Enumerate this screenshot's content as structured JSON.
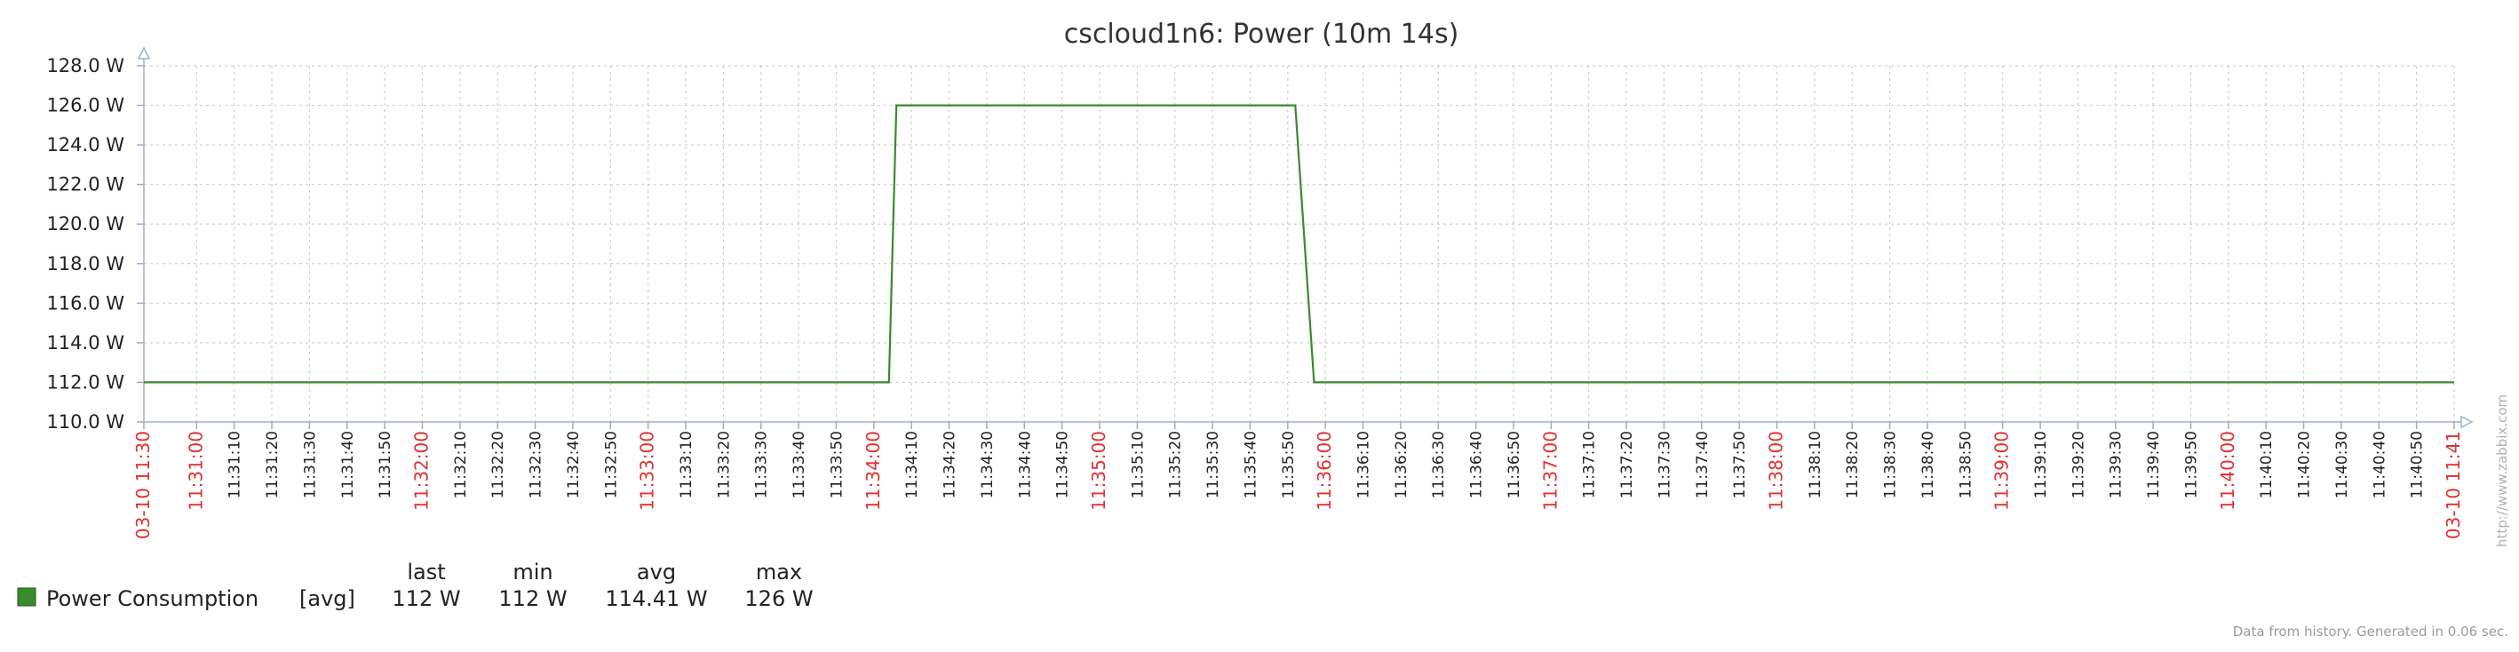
{
  "chart_data": {
    "type": "line",
    "title": "cscloud1n6: Power (10m 14s)",
    "y_unit": "W",
    "ylim": [
      110.0,
      128.0
    ],
    "y_ticks": [
      "110.0 W",
      "112.0 W",
      "114.0 W",
      "116.0 W",
      "118.0 W",
      "120.0 W",
      "122.0 W",
      "124.0 W",
      "126.0 W",
      "128.0 W"
    ],
    "x_range": [
      "11:30:46",
      "11:41:00"
    ],
    "x_tick_labels": [
      {
        "t": "11:30:46",
        "label": "03-10 11:30",
        "major": true
      },
      {
        "t": "11:31:00",
        "label": "11:31:00",
        "major": true
      },
      {
        "t": "11:31:10",
        "label": "11:31:10"
      },
      {
        "t": "11:31:20",
        "label": "11:31:20"
      },
      {
        "t": "11:31:30",
        "label": "11:31:30"
      },
      {
        "t": "11:31:40",
        "label": "11:31:40"
      },
      {
        "t": "11:31:50",
        "label": "11:31:50"
      },
      {
        "t": "11:32:00",
        "label": "11:32:00",
        "major": true
      },
      {
        "t": "11:32:10",
        "label": "11:32:10"
      },
      {
        "t": "11:32:20",
        "label": "11:32:20"
      },
      {
        "t": "11:32:30",
        "label": "11:32:30"
      },
      {
        "t": "11:32:40",
        "label": "11:32:40"
      },
      {
        "t": "11:32:50",
        "label": "11:32:50"
      },
      {
        "t": "11:33:00",
        "label": "11:33:00",
        "major": true
      },
      {
        "t": "11:33:10",
        "label": "11:33:10"
      },
      {
        "t": "11:33:20",
        "label": "11:33:20"
      },
      {
        "t": "11:33:30",
        "label": "11:33:30"
      },
      {
        "t": "11:33:40",
        "label": "11:33:40"
      },
      {
        "t": "11:33:50",
        "label": "11:33:50"
      },
      {
        "t": "11:34:00",
        "label": "11:34:00",
        "major": true
      },
      {
        "t": "11:34:10",
        "label": "11:34:10"
      },
      {
        "t": "11:34:20",
        "label": "11:34:20"
      },
      {
        "t": "11:34:30",
        "label": "11:34:30"
      },
      {
        "t": "11:34:40",
        "label": "11:34:40"
      },
      {
        "t": "11:34:50",
        "label": "11:34:50"
      },
      {
        "t": "11:35:00",
        "label": "11:35:00",
        "major": true
      },
      {
        "t": "11:35:10",
        "label": "11:35:10"
      },
      {
        "t": "11:35:20",
        "label": "11:35:20"
      },
      {
        "t": "11:35:30",
        "label": "11:35:30"
      },
      {
        "t": "11:35:40",
        "label": "11:35:40"
      },
      {
        "t": "11:35:50",
        "label": "11:35:50"
      },
      {
        "t": "11:36:00",
        "label": "11:36:00",
        "major": true
      },
      {
        "t": "11:36:10",
        "label": "11:36:10"
      },
      {
        "t": "11:36:20",
        "label": "11:36:20"
      },
      {
        "t": "11:36:30",
        "label": "11:36:30"
      },
      {
        "t": "11:36:40",
        "label": "11:36:40"
      },
      {
        "t": "11:36:50",
        "label": "11:36:50"
      },
      {
        "t": "11:37:00",
        "label": "11:37:00",
        "major": true
      },
      {
        "t": "11:37:10",
        "label": "11:37:10"
      },
      {
        "t": "11:37:20",
        "label": "11:37:20"
      },
      {
        "t": "11:37:30",
        "label": "11:37:30"
      },
      {
        "t": "11:37:40",
        "label": "11:37:40"
      },
      {
        "t": "11:37:50",
        "label": "11:37:50"
      },
      {
        "t": "11:38:00",
        "label": "11:38:00",
        "major": true
      },
      {
        "t": "11:38:10",
        "label": "11:38:10"
      },
      {
        "t": "11:38:20",
        "label": "11:38:20"
      },
      {
        "t": "11:38:30",
        "label": "11:38:30"
      },
      {
        "t": "11:38:40",
        "label": "11:38:40"
      },
      {
        "t": "11:38:50",
        "label": "11:38:50"
      },
      {
        "t": "11:39:00",
        "label": "11:39:00",
        "major": true
      },
      {
        "t": "11:39:10",
        "label": "11:39:10"
      },
      {
        "t": "11:39:20",
        "label": "11:39:20"
      },
      {
        "t": "11:39:30",
        "label": "11:39:30"
      },
      {
        "t": "11:39:40",
        "label": "11:39:40"
      },
      {
        "t": "11:39:50",
        "label": "11:39:50"
      },
      {
        "t": "11:40:00",
        "label": "11:40:00",
        "major": true
      },
      {
        "t": "11:40:10",
        "label": "11:40:10"
      },
      {
        "t": "11:40:20",
        "label": "11:40:20"
      },
      {
        "t": "11:40:30",
        "label": "11:40:30"
      },
      {
        "t": "11:40:40",
        "label": "11:40:40"
      },
      {
        "t": "11:40:50",
        "label": "11:40:50"
      },
      {
        "t": "11:41:00",
        "label": "03-10 11:41",
        "major": true
      }
    ],
    "series": [
      {
        "name": "Power Consumption",
        "color": "#3a8a2e",
        "points": [
          {
            "t": "11:30:46",
            "y": 112
          },
          {
            "t": "11:34:04",
            "y": 112
          },
          {
            "t": "11:34:06",
            "y": 126
          },
          {
            "t": "11:35:52",
            "y": 126
          },
          {
            "t": "11:35:57",
            "y": 112
          },
          {
            "t": "11:41:00",
            "y": 112
          }
        ]
      }
    ],
    "legend": {
      "swatch_color": "#3a8a2e",
      "name": "Power Consumption",
      "func": "[avg]",
      "headers": [
        "last",
        "min",
        "avg",
        "max"
      ],
      "values": [
        "112 W",
        "112 W",
        "114.41 W",
        "126 W"
      ]
    },
    "grid": true,
    "footer": "Data from history. Generated in 0.06 sec.",
    "watermark": "http://www.zabbix.com"
  }
}
